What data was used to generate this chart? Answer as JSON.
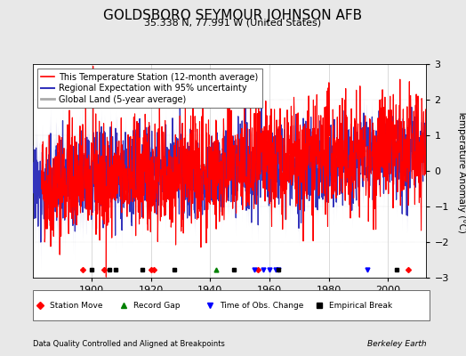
{
  "title": "GOLDSBORO SEYMOUR JOHNSON AFB",
  "subtitle": "35.338 N, 77.991 W (United States)",
  "ylabel": "Temperature Anomaly (°C)",
  "footer_left": "Data Quality Controlled and Aligned at Breakpoints",
  "footer_right": "Berkeley Earth",
  "ylim": [
    -3,
    3
  ],
  "xlim": [
    1880,
    2013
  ],
  "x_ticks": [
    1900,
    1920,
    1940,
    1960,
    1980,
    2000
  ],
  "y_ticks": [
    -3,
    -2,
    -1,
    0,
    1,
    2,
    3
  ],
  "legend_entries": [
    {
      "label": "This Temperature Station (12-month average)",
      "color": "#FF0000",
      "linewidth": 0.8
    },
    {
      "label": "Regional Expectation with 95% uncertainty",
      "color": "#3333BB",
      "linewidth": 0.9
    },
    {
      "label": "Global Land (5-year average)",
      "color": "#AAAAAA",
      "linewidth": 2.0
    }
  ],
  "uncertainty_color": "#AAAADD",
  "uncertainty_alpha": 0.4,
  "background_color": "#E8E8E8",
  "plot_bg_color": "#FFFFFF",
  "grid_color": "#CCCCCC",
  "title_fontsize": 11,
  "subtitle_fontsize": 8,
  "axis_label_fontsize": 7.5,
  "tick_fontsize": 8,
  "legend_fontsize": 7,
  "seed": 42,
  "station_moves": [
    1897,
    1904,
    1920,
    1921,
    1956,
    2007
  ],
  "record_gaps": [
    1942
  ],
  "obs_changes": [
    1955,
    1958,
    1960,
    1962,
    1963,
    1993
  ],
  "empirical_breaks": [
    1900,
    1906,
    1908,
    1917,
    1928,
    1948,
    1963,
    2003
  ]
}
